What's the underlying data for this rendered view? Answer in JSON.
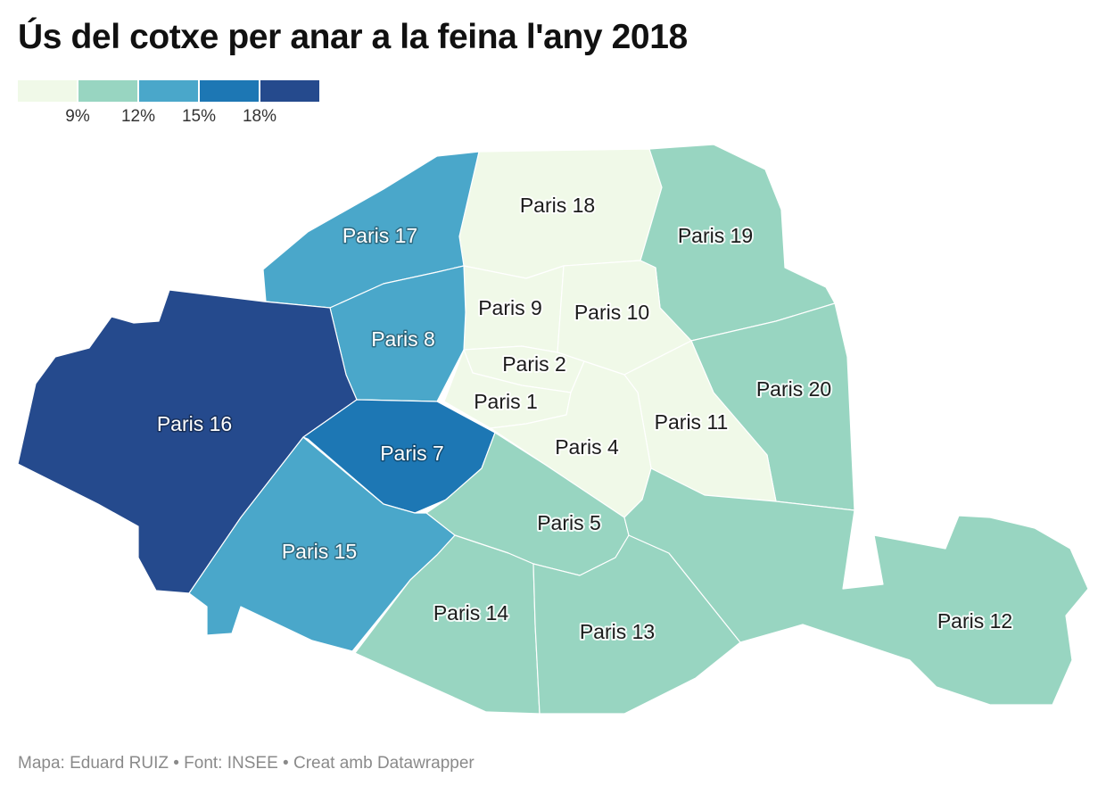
{
  "title": "Ús del cotxe per anar a la feina l'any 2018",
  "legend": {
    "colors": [
      "#f0f9e8",
      "#98d5c1",
      "#4aa7ca",
      "#1d77b4",
      "#254a8d"
    ],
    "ticks": [
      "9%",
      "12%",
      "15%",
      "18%"
    ]
  },
  "regions": [
    {
      "name": "Paris 18",
      "label": "Paris 18",
      "bin": 0
    },
    {
      "name": "Paris 19",
      "label": "Paris 19",
      "bin": 1
    },
    {
      "name": "Paris 17",
      "label": "Paris 17",
      "bin": 2
    },
    {
      "name": "Paris 9",
      "label": "Paris 9",
      "bin": 0
    },
    {
      "name": "Paris 10",
      "label": "Paris 10",
      "bin": 0
    },
    {
      "name": "Paris 8",
      "label": "Paris 8",
      "bin": 2
    },
    {
      "name": "Paris 2",
      "label": "Paris 2",
      "bin": 0
    },
    {
      "name": "Paris 20",
      "label": "Paris 20",
      "bin": 1
    },
    {
      "name": "Paris 16",
      "label": "Paris 16",
      "bin": 4
    },
    {
      "name": "Paris 1",
      "label": "Paris 1",
      "bin": 0
    },
    {
      "name": "Paris 11",
      "label": "Paris 11",
      "bin": 0
    },
    {
      "name": "Paris 7",
      "label": "Paris 7",
      "bin": 3
    },
    {
      "name": "Paris 4",
      "label": "Paris 4",
      "bin": 0
    },
    {
      "name": "Paris 5",
      "label": "Paris 5",
      "bin": 1
    },
    {
      "name": "Paris 15",
      "label": "Paris 15",
      "bin": 2
    },
    {
      "name": "Paris 14",
      "label": "Paris 14",
      "bin": 1
    },
    {
      "name": "Paris 13",
      "label": "Paris 13",
      "bin": 1
    },
    {
      "name": "Paris 12",
      "label": "Paris 12",
      "bin": 1
    }
  ],
  "footer": "Mapa: Eduard RUIZ • Font: INSEE • Creat amb Datawrapper"
}
